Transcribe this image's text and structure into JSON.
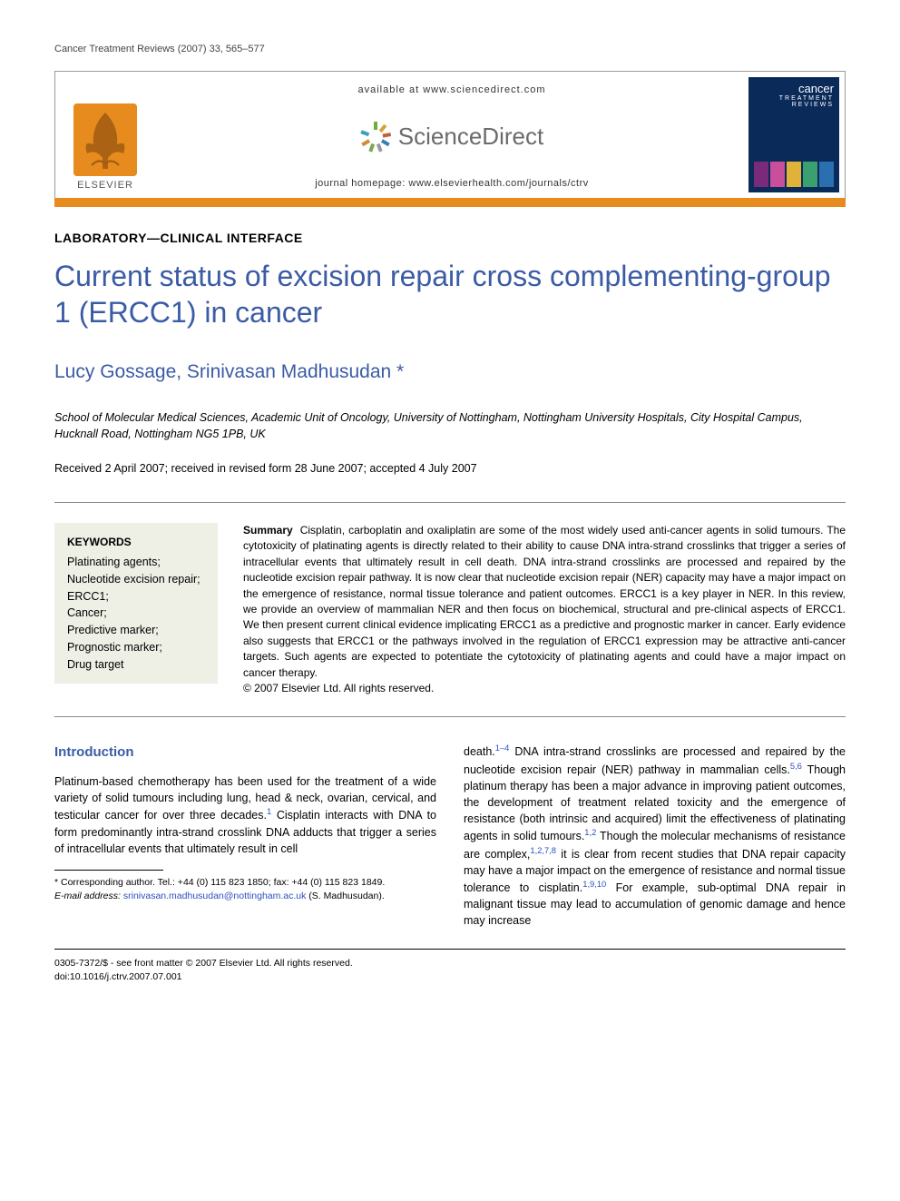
{
  "colors": {
    "accent_orange": "#e78b1f",
    "heading_blue": "#3b5ba5",
    "link_blue": "#2a4fbf",
    "keywords_bg": "#eef0e6",
    "cover_bg": "#0a2a5a",
    "text": "#000000",
    "rule_gray": "#888888"
  },
  "running_head": "Cancer Treatment Reviews (2007) 33, 565–577",
  "masthead": {
    "publisher_name": "ELSEVIER",
    "available_line": "available at www.sciencedirect.com",
    "sd_brand": "ScienceDirect",
    "journal_homepage_label": "journal homepage: ",
    "journal_homepage_url": "www.elsevierhealth.com/journals/ctrv",
    "cover": {
      "title_line1": "cancer",
      "title_line2": "TREATMENT",
      "title_line3": "REVIEWS",
      "strip_colors": [
        "#7a2a7a",
        "#c94f9a",
        "#e0b23a",
        "#3aa06f",
        "#2a6fb0"
      ]
    }
  },
  "section_label": "LABORATORY—CLINICAL INTERFACE",
  "article_title": "Current status of excision repair cross complementing-group 1 (ERCC1) in cancer",
  "authors": "Lucy Gossage, Srinivasan Madhusudan *",
  "affiliation": "School of Molecular Medical Sciences, Academic Unit of Oncology, University of Nottingham, Nottingham University Hospitals, City Hospital Campus, Hucknall Road, Nottingham NG5 1PB, UK",
  "history": "Received 2 April 2007; received in revised form 28 June 2007; accepted 4 July 2007",
  "keywords": {
    "heading": "KEYWORDS",
    "items": [
      "Platinating agents;",
      "Nucleotide excision repair;",
      "ERCC1;",
      "Cancer;",
      "Predictive marker;",
      "Prognostic marker;",
      "Drug target"
    ]
  },
  "summary": {
    "heading": "Summary",
    "body": "Cisplatin, carboplatin and oxaliplatin are some of the most widely used anti-cancer agents in solid tumours. The cytotoxicity of platinating agents is directly related to their ability to cause DNA intra-strand crosslinks that trigger a series of intracellular events that ultimately result in cell death. DNA intra-strand crosslinks are processed and repaired by the nucleotide excision repair pathway. It is now clear that nucleotide excision repair (NER) capacity may have a major impact on the emergence of resistance, normal tissue tolerance and patient outcomes. ERCC1 is a key player in NER. In this review, we provide an overview of mammalian NER and then focus on biochemical, structural and pre-clinical aspects of ERCC1. We then present current clinical evidence implicating ERCC1 as a predictive and prognostic marker in cancer. Early evidence also suggests that ERCC1 or the pathways involved in the regulation of ERCC1 expression may be attractive anti-cancer targets. Such agents are expected to potentiate the cytotoxicity of platinating agents and could have a major impact on cancer therapy.",
    "copyright": "© 2007 Elsevier Ltd. All rights reserved."
  },
  "introduction": {
    "heading": "Introduction",
    "para1_a": "Platinum-based chemotherapy has been used for the treatment of a wide variety of solid tumours including lung, head & neck, ovarian, cervical, and testicular cancer for over three decades.",
    "para1_ref1": "1",
    "para1_b": " Cisplatin interacts with DNA to form predominantly intra-strand crosslink DNA adducts that trigger a series of intracellular events that ultimately result in cell ",
    "para2_a": "death.",
    "para2_ref1": "1–4",
    "para2_b": " DNA intra-strand crosslinks are processed and repaired by the nucleotide excision repair (NER) pathway in mammalian cells.",
    "para2_ref2": "5,6",
    "para2_c": " Though platinum therapy has been a major advance in improving patient outcomes, the development of treatment related toxicity and the emergence of resistance (both intrinsic and acquired) limit the effectiveness of platinating agents in solid tumours.",
    "para2_ref3": "1,2",
    "para2_d": " Though the molecular mechanisms of resistance are complex,",
    "para2_ref4": "1,2,7,8",
    "para2_e": " it is clear from recent studies that DNA repair capacity may have a major impact on the emergence of resistance and normal tissue tolerance to cisplatin.",
    "para2_ref5": "1,9,10",
    "para2_f": " For example, sub-optimal DNA repair in malignant tissue may lead to accumulation of genomic damage and hence may increase"
  },
  "footnotes": {
    "corresponding": "* Corresponding author. Tel.: +44 (0) 115 823 1850; fax: +44 (0) 115 823 1849.",
    "email_label": "E-mail address: ",
    "email": "srinivasan.madhusudan@nottingham.ac.uk",
    "email_tail": " (S. Madhusudan)."
  },
  "bottom": {
    "line1": "0305-7372/$ - see front matter © 2007 Elsevier Ltd. All rights reserved.",
    "line2": "doi:10.1016/j.ctrv.2007.07.001"
  }
}
